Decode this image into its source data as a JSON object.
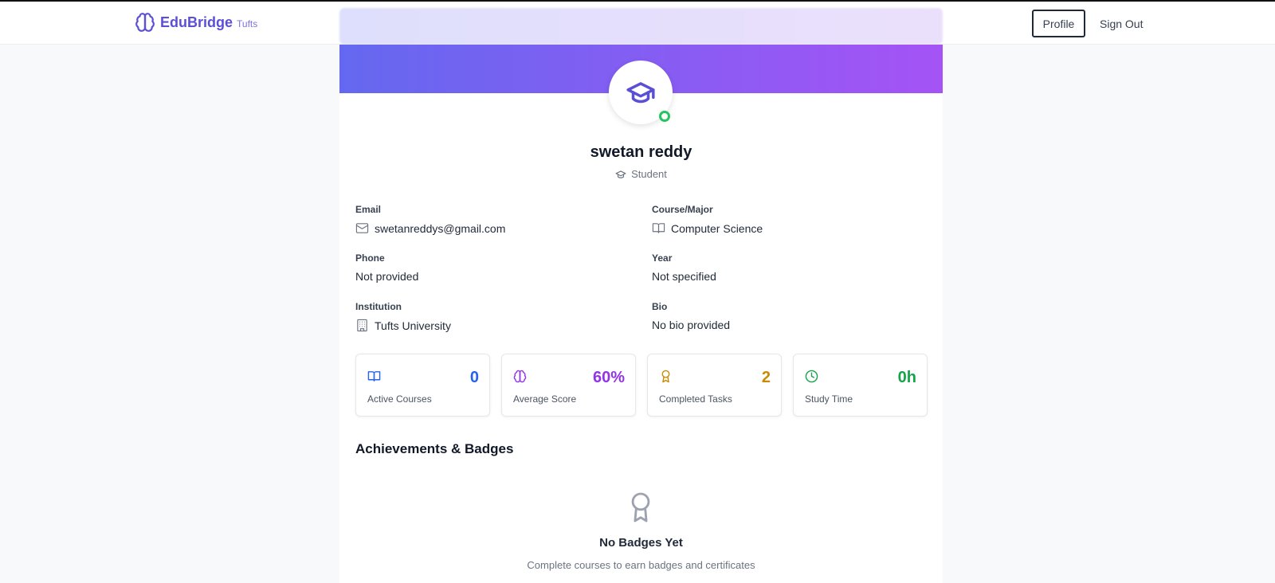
{
  "navbar": {
    "brand_name": "EduBridge",
    "brand_sub": "Tufts",
    "profile_label": "Profile",
    "signout_label": "Sign Out"
  },
  "profile": {
    "name": "swetan reddy",
    "role": "Student",
    "status_color": "#22c55e",
    "fields": [
      {
        "label": "Email",
        "value": "swetanreddys@gmail.com",
        "icon": "mail-icon"
      },
      {
        "label": "Course/Major",
        "value": "Computer Science",
        "icon": "book-icon"
      },
      {
        "label": "Phone",
        "value": "Not provided"
      },
      {
        "label": "Year",
        "value": "Not specified"
      },
      {
        "label": "Institution",
        "value": "Tufts University",
        "icon": "building-icon"
      },
      {
        "label": "Bio",
        "value": "No bio provided"
      }
    ]
  },
  "stats": [
    {
      "label": "Active Courses",
      "value": "0",
      "icon": "book-open-icon",
      "color": "#2563eb"
    },
    {
      "label": "Average Score",
      "value": "60%",
      "icon": "brain-icon",
      "color": "#9333ea"
    },
    {
      "label": "Completed Tasks",
      "value": "2",
      "icon": "award-icon",
      "color": "#ca8a04"
    },
    {
      "label": "Study Time",
      "value": "0h",
      "icon": "clock-icon",
      "color": "#16a34a"
    }
  ],
  "achievements": {
    "title": "Achievements & Badges",
    "empty_title": "No Badges Yet",
    "empty_subtitle": "Complete courses to earn badges and certificates"
  },
  "colors": {
    "accent": "#5b4fd6",
    "hero_start": "#6468f0",
    "hero_end": "#a553f5"
  }
}
